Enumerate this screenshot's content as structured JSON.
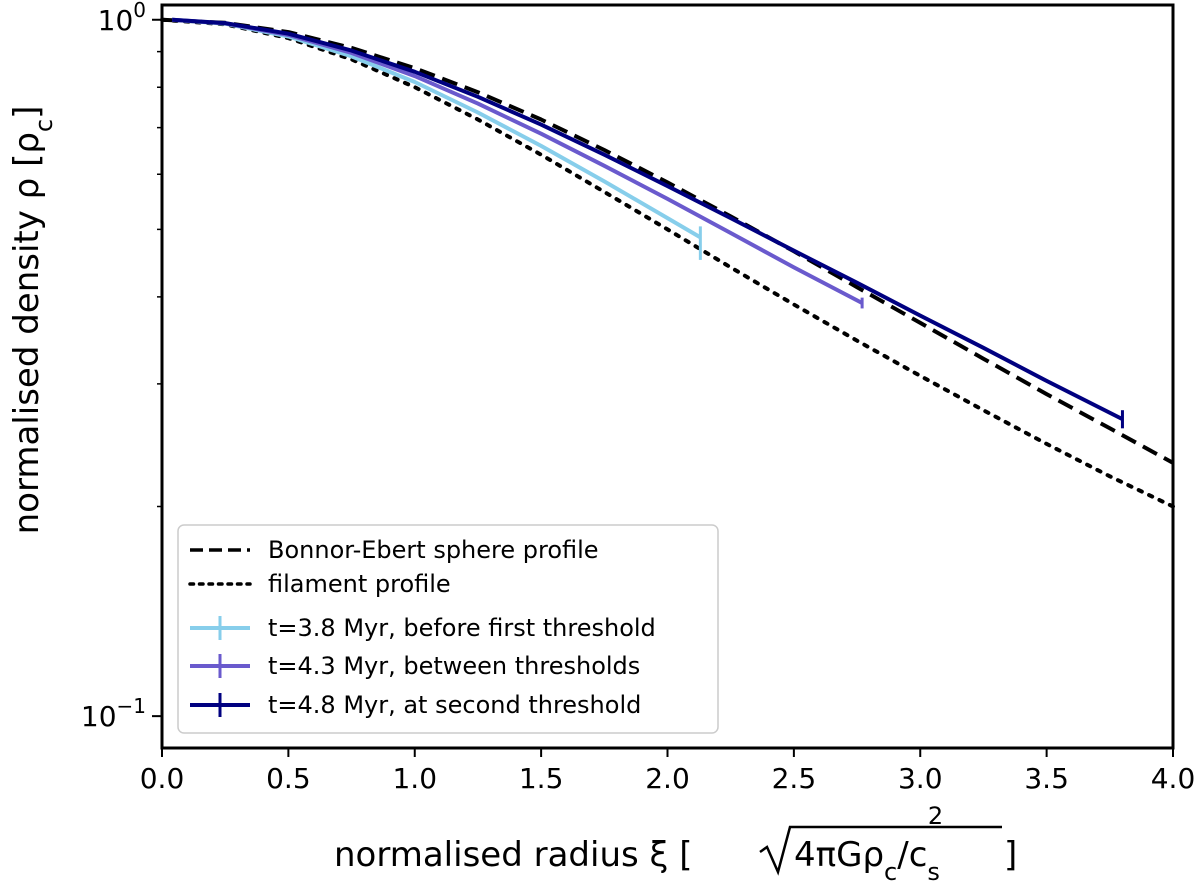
{
  "chart_data": {
    "type": "line",
    "xscale": "linear",
    "yscale": "log",
    "xlim": [
      0.0,
      4.0
    ],
    "ylim": [
      0.09,
      1.05
    ],
    "xlabel_prefix": "normalised radius ξ [",
    "xlabel_radicand": "4πGρ",
    "xlabel_c": "c",
    "xlabel_c_sub": "c",
    "xlabel_s": "/c",
    "xlabel_s_sub": "s",
    "xlabel_s_sup": "2",
    "xlabel_suffix": "]",
    "ylabel_prefix": "normalised density ρ [ρ",
    "ylabel_sub": "c",
    "ylabel_suffix": "]",
    "xticks": [
      {
        "value": 0.0,
        "label": "0.0"
      },
      {
        "value": 0.5,
        "label": "0.5"
      },
      {
        "value": 1.0,
        "label": "1.0"
      },
      {
        "value": 1.5,
        "label": "1.5"
      },
      {
        "value": 2.0,
        "label": "2.0"
      },
      {
        "value": 2.5,
        "label": "2.5"
      },
      {
        "value": 3.0,
        "label": "3.0"
      },
      {
        "value": 3.5,
        "label": "3.5"
      },
      {
        "value": 4.0,
        "label": "4.0"
      }
    ],
    "yticks": [
      {
        "value": 1.0,
        "base": "10",
        "exp": "0"
      },
      {
        "value": 0.1,
        "base": "10",
        "exp": "−1"
      }
    ],
    "yminor_ticks": [
      0.2,
      0.3,
      0.4,
      0.5,
      0.6,
      0.7,
      0.8,
      0.9
    ],
    "legend_position": "lower-left",
    "series": [
      {
        "name": "Bonnor-Ebert sphere profile",
        "color": "#000000",
        "style": "dashed",
        "x": [
          0.0,
          0.25,
          0.5,
          0.75,
          1.0,
          1.25,
          1.5,
          1.75,
          2.0,
          2.25,
          2.5,
          2.75,
          3.0,
          3.25,
          3.5,
          3.75,
          4.0
        ],
        "y": [
          1.0,
          0.99,
          0.96,
          0.911,
          0.852,
          0.787,
          0.719,
          0.65,
          0.584,
          0.522,
          0.465,
          0.413,
          0.367,
          0.326,
          0.29,
          0.259,
          0.231
        ]
      },
      {
        "name": "filament profile",
        "color": "#000000",
        "style": "dotted",
        "x": [
          0.0,
          0.25,
          0.5,
          0.75,
          1.0,
          1.25,
          1.5,
          1.75,
          2.0,
          2.25,
          2.5,
          2.75,
          3.0,
          3.25,
          3.5,
          3.75,
          4.0
        ],
        "y": [
          1.0,
          0.985,
          0.941,
          0.877,
          0.8,
          0.719,
          0.64,
          0.566,
          0.5,
          0.441,
          0.39,
          0.346,
          0.308,
          0.275,
          0.246,
          0.221,
          0.2
        ]
      },
      {
        "name": "t=3.8 Myr, before first threshold",
        "color": "#87ceeb",
        "style": "solid",
        "x": [
          0.04,
          0.25,
          0.5,
          0.75,
          1.0,
          1.25,
          1.5,
          1.75,
          2.0,
          2.13
        ],
        "y": [
          1.0,
          0.987,
          0.946,
          0.886,
          0.814,
          0.736,
          0.659,
          0.586,
          0.519,
          0.487
        ],
        "end_error": [
          0.452,
          0.505
        ]
      },
      {
        "name": "t=4.3 Myr, between thresholds",
        "color": "#6a5acd",
        "style": "solid",
        "x": [
          0.04,
          0.25,
          0.5,
          0.75,
          1.0,
          1.25,
          1.5,
          1.75,
          2.0,
          2.25,
          2.5,
          2.77
        ],
        "y": [
          1.0,
          0.988,
          0.951,
          0.896,
          0.83,
          0.758,
          0.686,
          0.617,
          0.553,
          0.494,
          0.441,
          0.392
        ],
        "end_error": [
          0.385,
          0.399
        ]
      },
      {
        "name": "t=4.8 Myr, at second threshold",
        "color": "#000080",
        "style": "solid",
        "x": [
          0.04,
          0.25,
          0.5,
          0.75,
          1.0,
          1.25,
          1.5,
          1.75,
          2.0,
          2.25,
          2.5,
          2.75,
          3.0,
          3.25,
          3.5,
          3.8
        ],
        "y": [
          1.0,
          0.989,
          0.955,
          0.903,
          0.842,
          0.775,
          0.707,
          0.64,
          0.577,
          0.519,
          0.466,
          0.419,
          0.376,
          0.338,
          0.303,
          0.267
        ],
        "end_error": [
          0.259,
          0.275
        ]
      }
    ]
  }
}
